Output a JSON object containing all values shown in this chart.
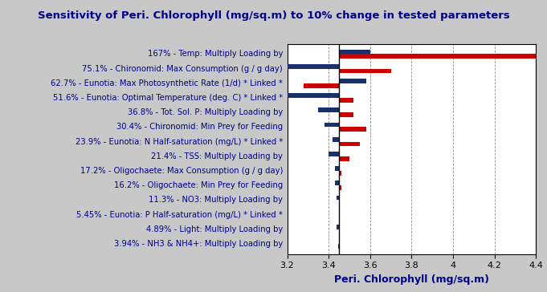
{
  "title": "Sensitivity of Peri. Chlorophyll (mg/sq.m) to 10% change in tested parameters",
  "xlabel": "Peri. Chlorophyll (mg/sq.m)",
  "baseline": 3.45,
  "xlim": [
    3.2,
    4.4
  ],
  "xticks": [
    3.2,
    3.4,
    3.6,
    3.8,
    4.0,
    4.2,
    4.4
  ],
  "background_color": "#c8c8c8",
  "plot_bg_color": "#ffffff",
  "bar_height": 0.32,
  "blue_color": "#1a2f6e",
  "red_color": "#cc0000",
  "categories": [
    "167% - Temp: Multiply Loading by",
    "75.1% - Chironomid: Max Consumption (g / g day)",
    "62.7% - Eunotia: Max Photosynthetic Rate (1/d) * Linked *",
    "51.6% - Eunotia: Optimal Temperature (deg. C) * Linked *",
    "36.8% - Tot. Sol. P: Multiply Loading by",
    "30.4% - Chironomid: Min Prey for Feeding",
    "23.9% - Eunotia: N Half-saturation (mg/L) * Linked *",
    "21.4% - TSS: Multiply Loading by",
    "17.2% - Oligochaete: Max Consumption (g / g day)",
    "16.2% - Oligochaete: Min Prey for Feeding",
    "11.3% - NO3: Multiply Loading by",
    "5.45% - Eunotia: P Half-saturation (mg/L) * Linked *",
    "4.89% - Light: Multiply Loading by",
    "3.94% - NH3 & NH4+: Multiply Loading by"
  ],
  "blue_values": [
    3.6,
    3.2,
    3.58,
    3.15,
    3.35,
    3.38,
    3.42,
    3.4,
    3.43,
    3.43,
    3.44,
    3.45,
    3.44,
    3.45
  ],
  "red_values": [
    4.4,
    3.7,
    3.28,
    3.52,
    3.52,
    3.58,
    3.55,
    3.5,
    3.46,
    3.46,
    3.45,
    3.45,
    3.45,
    3.446
  ],
  "title_color": "#00008B",
  "label_color": "#00008B",
  "tick_color": "#000000",
  "title_fontsize": 9.5,
  "xlabel_fontsize": 9,
  "ytick_fontsize": 7.2,
  "xtick_fontsize": 8
}
